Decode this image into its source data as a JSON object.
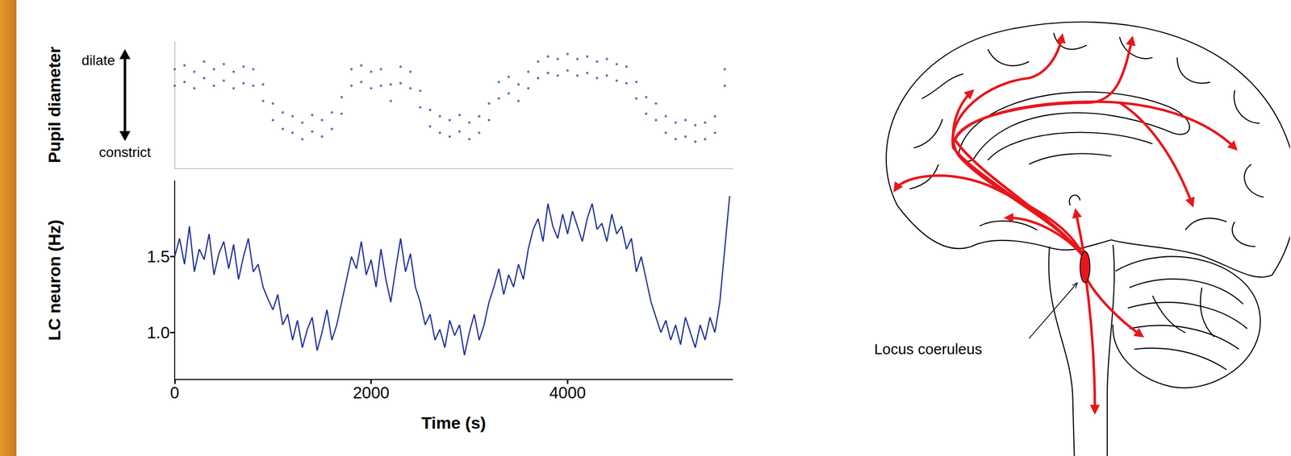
{
  "chart_data": [
    {
      "type": "scatter",
      "ylabel": "Pupil diameter",
      "annotations": [
        "dilate",
        "constrict"
      ],
      "color": "#2a56a8",
      "marker": "circle",
      "tick_labels": false,
      "xlim": [
        0,
        5680
      ],
      "ylim": [
        0,
        1
      ],
      "xticks": [],
      "yticks": [],
      "x": [
        0,
        0,
        100,
        100,
        200,
        200,
        300,
        300,
        400,
        400,
        500,
        500,
        600,
        600,
        700,
        700,
        800,
        800,
        900,
        900,
        1000,
        1000,
        1100,
        1100,
        1200,
        1200,
        1300,
        1300,
        1400,
        1400,
        1500,
        1500,
        1600,
        1600,
        1700,
        1700,
        1800,
        1800,
        1900,
        1900,
        2000,
        2000,
        2100,
        2100,
        2200,
        2200,
        2300,
        2300,
        2400,
        2400,
        2500,
        2500,
        2600,
        2600,
        2700,
        2700,
        2800,
        2800,
        2900,
        2900,
        3000,
        3000,
        3100,
        3100,
        3200,
        3200,
        3300,
        3300,
        3400,
        3400,
        3500,
        3500,
        3600,
        3600,
        3700,
        3700,
        3800,
        3800,
        3900,
        3900,
        4000,
        4000,
        4100,
        4100,
        4200,
        4200,
        4300,
        4300,
        4400,
        4400,
        4500,
        4500,
        4600,
        4600,
        4700,
        4700,
        4800,
        4800,
        4900,
        4900,
        5000,
        5000,
        5100,
        5100,
        5200,
        5200,
        5300,
        5300,
        5400,
        5400,
        5500,
        5500,
        5600,
        5600
      ],
      "values": [
        0.78,
        0.65,
        0.81,
        0.68,
        0.76,
        0.63,
        0.84,
        0.71,
        0.78,
        0.65,
        0.82,
        0.69,
        0.76,
        0.63,
        0.8,
        0.67,
        0.78,
        0.65,
        0.66,
        0.53,
        0.51,
        0.38,
        0.44,
        0.31,
        0.41,
        0.28,
        0.36,
        0.23,
        0.42,
        0.29,
        0.38,
        0.25,
        0.44,
        0.31,
        0.56,
        0.43,
        0.78,
        0.65,
        0.81,
        0.68,
        0.76,
        0.63,
        0.78,
        0.65,
        0.66,
        0.53,
        0.8,
        0.67,
        0.76,
        0.63,
        0.61,
        0.48,
        0.46,
        0.33,
        0.41,
        0.28,
        0.38,
        0.25,
        0.42,
        0.29,
        0.36,
        0.23,
        0.41,
        0.28,
        0.51,
        0.38,
        0.68,
        0.55,
        0.72,
        0.59,
        0.66,
        0.53,
        0.76,
        0.63,
        0.84,
        0.71,
        0.88,
        0.75,
        0.86,
        0.73,
        0.9,
        0.77,
        0.86,
        0.73,
        0.88,
        0.75,
        0.84,
        0.71,
        0.86,
        0.73,
        0.82,
        0.69,
        0.8,
        0.67,
        0.68,
        0.55,
        0.56,
        0.43,
        0.51,
        0.38,
        0.41,
        0.28,
        0.36,
        0.23,
        0.38,
        0.25,
        0.34,
        0.21,
        0.36,
        0.23,
        0.41,
        0.28,
        0.78,
        0.65
      ]
    },
    {
      "type": "line",
      "ylabel": "LC neuron (Hz)",
      "xlabel": "Time (s)",
      "color": "#22339a",
      "xlim": [
        0,
        5680
      ],
      "ylim": [
        0.69,
        2.0
      ],
      "xticks": [
        0,
        2000,
        4000
      ],
      "yticks": [
        {
          "value": 1,
          "label": "1.0"
        },
        1.5
      ],
      "x": [
        0,
        50,
        100,
        150,
        200,
        250,
        300,
        350,
        400,
        450,
        500,
        550,
        600,
        650,
        700,
        750,
        800,
        850,
        900,
        950,
        1000,
        1050,
        1100,
        1150,
        1200,
        1250,
        1300,
        1350,
        1400,
        1450,
        1500,
        1550,
        1600,
        1650,
        1700,
        1750,
        1800,
        1850,
        1900,
        1950,
        2000,
        2050,
        2100,
        2150,
        2200,
        2250,
        2300,
        2350,
        2400,
        2450,
        2500,
        2550,
        2600,
        2650,
        2700,
        2750,
        2800,
        2850,
        2900,
        2950,
        3000,
        3050,
        3100,
        3150,
        3200,
        3250,
        3300,
        3350,
        3400,
        3450,
        3500,
        3550,
        3600,
        3650,
        3700,
        3750,
        3800,
        3850,
        3900,
        3950,
        4000,
        4050,
        4100,
        4150,
        4200,
        4250,
        4300,
        4350,
        4400,
        4450,
        4500,
        4550,
        4600,
        4650,
        4700,
        4750,
        4800,
        4850,
        4900,
        4950,
        5000,
        5050,
        5100,
        5150,
        5200,
        5250,
        5300,
        5350,
        5400,
        5450,
        5500,
        5550,
        5600,
        5650
      ],
      "values": [
        1.5,
        1.62,
        1.45,
        1.7,
        1.4,
        1.55,
        1.48,
        1.65,
        1.38,
        1.52,
        1.6,
        1.42,
        1.58,
        1.35,
        1.5,
        1.62,
        1.4,
        1.45,
        1.3,
        1.22,
        1.15,
        1.25,
        1.05,
        1.12,
        0.95,
        1.08,
        0.9,
        1.02,
        1.1,
        0.88,
        1.0,
        1.15,
        0.95,
        1.05,
        1.2,
        1.35,
        1.5,
        1.42,
        1.6,
        1.38,
        1.48,
        1.3,
        1.55,
        1.35,
        1.2,
        1.42,
        1.62,
        1.4,
        1.52,
        1.3,
        1.2,
        1.05,
        1.12,
        0.95,
        1.02,
        0.9,
        1.08,
        0.98,
        1.05,
        0.85,
        1.0,
        1.12,
        0.95,
        1.05,
        1.2,
        1.3,
        1.42,
        1.25,
        1.38,
        1.3,
        1.45,
        1.35,
        1.55,
        1.68,
        1.75,
        1.6,
        1.85,
        1.7,
        1.62,
        1.78,
        1.65,
        1.8,
        1.7,
        1.6,
        1.75,
        1.85,
        1.68,
        1.72,
        1.6,
        1.78,
        1.65,
        1.7,
        1.55,
        1.62,
        1.4,
        1.5,
        1.35,
        1.2,
        1.1,
        1.0,
        1.08,
        0.95,
        1.05,
        0.92,
        1.1,
        1.0,
        0.9,
        1.05,
        0.95,
        1.1,
        1.0,
        1.2,
        1.55,
        1.9
      ]
    }
  ],
  "diagram": {
    "label": "Locus coeruleus"
  }
}
